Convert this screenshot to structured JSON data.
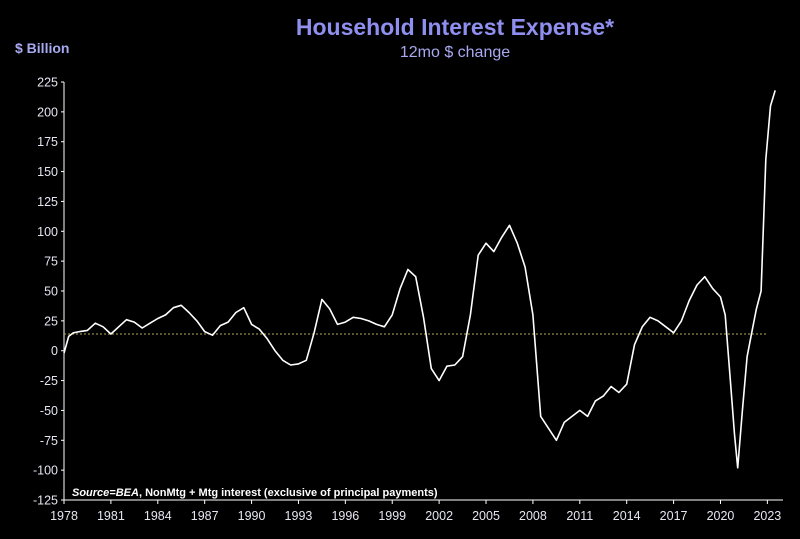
{
  "chart_data": {
    "type": "line",
    "title": "Household Interest Expense*",
    "subtitle": "12mo $ change",
    "ylabel": "$ Billion",
    "source_bold": "Source=BEA",
    "source_rest": ", NonMtg + Mtg interest (exclusive of principal payments)",
    "xlim": [
      1978,
      2024
    ],
    "ylim": [
      -125,
      225
    ],
    "y_ticks": [
      225,
      200,
      175,
      150,
      125,
      100,
      75,
      50,
      25,
      0,
      -25,
      -50,
      -75,
      -100,
      -125
    ],
    "x_ticks": [
      1978,
      1981,
      1984,
      1987,
      1990,
      1993,
      1996,
      1999,
      2002,
      2005,
      2008,
      2011,
      2014,
      2017,
      2020,
      2023
    ],
    "reference_line": 14,
    "grid": false,
    "colors": {
      "background": "#000000",
      "line": "#ffffff",
      "title": "#8f8ff0",
      "reference": "#b6a85a"
    },
    "series": [
      {
        "x": [
          1978.0,
          1978.3,
          1978.6,
          1979.0,
          1979.5,
          1980.0,
          1980.5,
          1981.0,
          1981.5,
          1982.0,
          1982.5,
          1983.0,
          1983.5,
          1984.0,
          1984.5,
          1985.0,
          1985.5,
          1986.0,
          1986.5,
          1987.0,
          1987.5,
          1988.0,
          1988.5,
          1989.0,
          1989.5,
          1990.0,
          1990.5,
          1991.0,
          1991.5,
          1992.0,
          1992.5,
          1993.0,
          1993.5,
          1994.0,
          1994.5,
          1995.0,
          1995.5,
          1996.0,
          1996.5,
          1997.0,
          1997.5,
          1998.0,
          1998.5,
          1999.0,
          1999.5,
          2000.0,
          2000.5,
          2001.0,
          2001.5,
          2002.0,
          2002.5,
          2003.0,
          2003.5,
          2004.0,
          2004.5,
          2005.0,
          2005.5,
          2006.0,
          2006.5,
          2007.0,
          2007.5,
          2008.0,
          2008.5,
          2009.0,
          2009.5,
          2010.0,
          2010.5,
          2011.0,
          2011.5,
          2012.0,
          2012.5,
          2013.0,
          2013.5,
          2014.0,
          2014.5,
          2015.0,
          2015.5,
          2016.0,
          2016.5,
          2017.0,
          2017.5,
          2018.0,
          2018.5,
          2019.0,
          2019.5,
          2020.0,
          2020.3,
          2020.6,
          2020.9,
          2021.1,
          2021.4,
          2021.7,
          2022.0,
          2022.3,
          2022.6,
          2022.9,
          2023.2,
          2023.5
        ],
        "y": [
          -2,
          12,
          15,
          16,
          17,
          23,
          20,
          14,
          20,
          26,
          24,
          19,
          23,
          27,
          30,
          36,
          38,
          32,
          25,
          16,
          13,
          21,
          24,
          32,
          36,
          22,
          18,
          10,
          0,
          -8,
          -12,
          -11,
          -8,
          15,
          43,
          35,
          22,
          24,
          28,
          27,
          25,
          22,
          20,
          30,
          52,
          68,
          62,
          28,
          -15,
          -25,
          -13,
          -12,
          -5,
          30,
          80,
          90,
          83,
          95,
          105,
          90,
          70,
          30,
          -55,
          -65,
          -75,
          -60,
          -55,
          -50,
          -55,
          -42,
          -38,
          -30,
          -35,
          -28,
          5,
          20,
          28,
          25,
          20,
          15,
          25,
          42,
          55,
          62,
          52,
          45,
          30,
          -20,
          -70,
          -98,
          -50,
          -5,
          15,
          35,
          50,
          160,
          205,
          218
        ]
      }
    ]
  }
}
